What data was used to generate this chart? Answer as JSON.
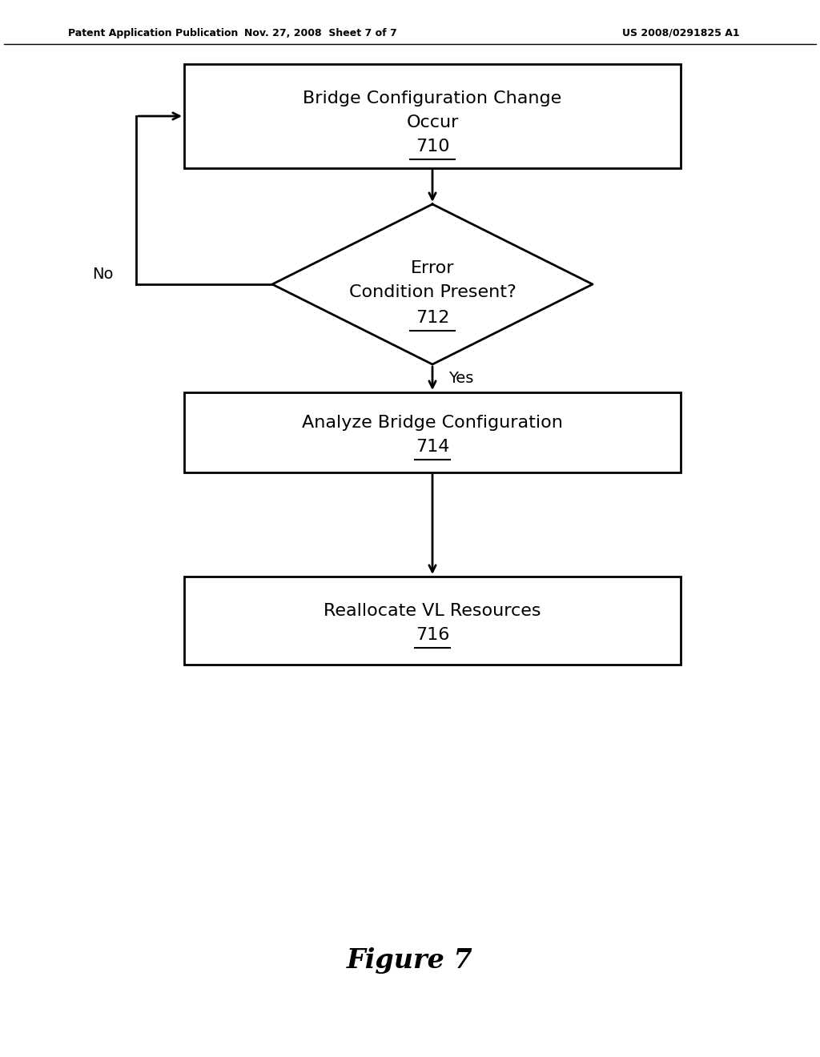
{
  "header_left": "Patent Application Publication",
  "header_center": "Nov. 27, 2008  Sheet 7 of 7",
  "header_right": "US 2008/0291825 A1",
  "figure_label": "Figure 7",
  "box710_lines": [
    "Bridge Configuration Change",
    "Occur",
    "710"
  ],
  "box712_lines": [
    "Error",
    "Condition Present?",
    "712"
  ],
  "box714_lines": [
    "Analyze Bridge Configuration",
    "714"
  ],
  "box716_lines": [
    "Reallocate VL Resources",
    "716"
  ],
  "label_no": "No",
  "label_yes": "Yes",
  "bg_color": "#ffffff",
  "box_edge_color": "#000000",
  "text_color": "#000000",
  "arrow_color": "#000000",
  "line_width": 2.0,
  "font_size_header": 9,
  "font_size_box": 16,
  "font_size_label": 14,
  "font_size_figure": 24
}
